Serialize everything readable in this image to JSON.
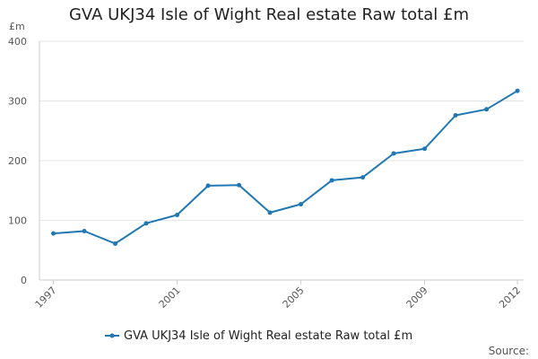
{
  "chart_data": {
    "type": "line",
    "title": "GVA UKJ34 Isle of Wight Real estate Raw total £m",
    "ylabel": "£m",
    "xlabel": "",
    "ylim": [
      0,
      400
    ],
    "yticks": [
      0,
      100,
      200,
      300,
      400
    ],
    "x": [
      1997,
      1998,
      1999,
      2000,
      2001,
      2002,
      2003,
      2004,
      2005,
      2006,
      2007,
      2008,
      2009,
      2010,
      2011,
      2012
    ],
    "xticks": [
      "1997",
      "2001",
      "2005",
      "2009",
      "2012"
    ],
    "series": [
      {
        "name": "GVA UKJ34 Isle of Wight Real estate Raw total £m",
        "color": "#1f77b4",
        "values": [
          78,
          82,
          61,
          95,
          109,
          158,
          159,
          113,
          127,
          167,
          172,
          212,
          220,
          276,
          286,
          317
        ]
      }
    ],
    "grid": true,
    "legend_position": "bottom"
  },
  "footer": {
    "source_label": "Source:"
  }
}
